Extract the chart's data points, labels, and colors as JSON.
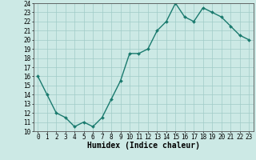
{
  "xlabel": "Humidex (Indice chaleur)",
  "ylabel": "",
  "x": [
    0,
    1,
    2,
    3,
    4,
    5,
    6,
    7,
    8,
    9,
    10,
    11,
    12,
    13,
    14,
    15,
    16,
    17,
    18,
    19,
    20,
    21,
    22,
    23
  ],
  "y": [
    16,
    14,
    12,
    11.5,
    10.5,
    11,
    10.5,
    11.5,
    13.5,
    15.5,
    18.5,
    18.5,
    19,
    21,
    22,
    24,
    22.5,
    22,
    23.5,
    23,
    22.5,
    21.5,
    20.5,
    20
  ],
  "line_color": "#1a7a6e",
  "marker": "D",
  "marker_size": 2,
  "bg_color": "#cce9e5",
  "grid_color": "#a0ccc8",
  "ylim": [
    10,
    24
  ],
  "xlim": [
    -0.5,
    23.5
  ],
  "yticks": [
    10,
    11,
    12,
    13,
    14,
    15,
    16,
    17,
    18,
    19,
    20,
    21,
    22,
    23,
    24
  ],
  "xticks": [
    0,
    1,
    2,
    3,
    4,
    5,
    6,
    7,
    8,
    9,
    10,
    11,
    12,
    13,
    14,
    15,
    16,
    17,
    18,
    19,
    20,
    21,
    22,
    23
  ],
  "tick_fontsize": 5.5,
  "xlabel_fontsize": 7,
  "line_width": 1.0
}
